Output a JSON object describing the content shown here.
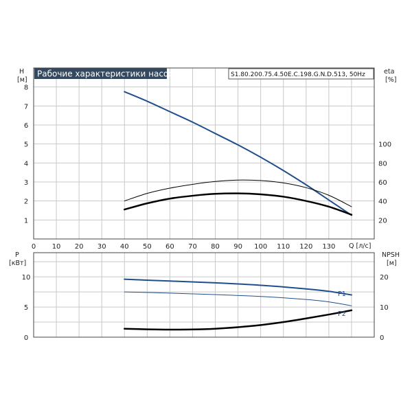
{
  "header": {
    "title": "Рабочие характеристики насоса",
    "model": "S1.80.200.75.4.50E.C.198.G.N.D.513, 50Hz"
  },
  "chart_data": [
    {
      "type": "line",
      "x_unit": "Q [л/с]",
      "x_ticks": [
        "0",
        "10",
        "20",
        "30",
        "40",
        "50",
        "60",
        "70",
        "80",
        "90",
        "100",
        "110",
        "120",
        "130"
      ],
      "xlim": [
        0,
        150
      ],
      "y_left_label": [
        "H",
        "[м]"
      ],
      "y_left_ticks": [
        "1",
        "2",
        "3",
        "4",
        "5",
        "6",
        "7",
        "8"
      ],
      "ylim_left": [
        0,
        9
      ],
      "y_right_label": [
        "eta",
        "[%]"
      ],
      "y_right_ticks": [
        "20",
        "40",
        "60",
        "80",
        "100"
      ],
      "ylim_right": [
        0,
        180
      ],
      "grid": true,
      "series": [
        {
          "axis": "left",
          "color": "#1f4e8c",
          "width": 2,
          "x": [
            40,
            50,
            60,
            70,
            80,
            90,
            100,
            110,
            120,
            130,
            140
          ],
          "y": [
            7.75,
            7.25,
            6.7,
            6.15,
            5.55,
            4.95,
            4.3,
            3.6,
            2.85,
            2.05,
            1.25
          ]
        },
        {
          "axis": "right",
          "color": "#000000",
          "width": 1,
          "x": [
            40,
            50,
            60,
            70,
            80,
            90,
            100,
            110,
            120,
            130,
            140
          ],
          "y": [
            40,
            48,
            53.5,
            57.5,
            60.5,
            62,
            61.5,
            59,
            54,
            46,
            34
          ]
        },
        {
          "axis": "right",
          "color": "#000000",
          "width": 2.5,
          "x": [
            40,
            50,
            60,
            70,
            80,
            90,
            100,
            110,
            120,
            130,
            140
          ],
          "y": [
            31,
            37.5,
            42.5,
            45.5,
            47.5,
            48,
            47,
            44.5,
            40,
            34,
            25.5
          ]
        }
      ]
    },
    {
      "type": "line",
      "y_left_label": [
        "P",
        "[кВт]"
      ],
      "y_left_ticks": [
        "0",
        "5",
        "10"
      ],
      "ylim_left": [
        0,
        14
      ],
      "y_right_label": [
        "NPSH",
        "[м]"
      ],
      "y_right_ticks": [
        "0",
        "10",
        "20"
      ],
      "ylim_right": [
        0,
        28
      ],
      "xlim": [
        0,
        150
      ],
      "grid": true,
      "series": [
        {
          "name": "P1",
          "axis": "left",
          "color": "#1f4e8c",
          "width": 2,
          "x": [
            40,
            60,
            80,
            100,
            120,
            130,
            140
          ],
          "y": [
            9.6,
            9.3,
            9.0,
            8.6,
            8.0,
            7.6,
            7.0
          ]
        },
        {
          "name": "P2",
          "axis": "left",
          "color": "#1f4e8c",
          "width": 1,
          "x": [
            40,
            60,
            80,
            100,
            120,
            130,
            140
          ],
          "y": [
            7.5,
            7.3,
            7.05,
            6.75,
            6.25,
            5.85,
            5.2
          ]
        },
        {
          "axis": "right",
          "color": "#000000",
          "width": 2.5,
          "x": [
            40,
            50,
            60,
            70,
            80,
            90,
            100,
            110,
            120,
            130,
            140
          ],
          "y": [
            2.8,
            2.6,
            2.5,
            2.55,
            2.8,
            3.3,
            4.0,
            5.0,
            6.2,
            7.5,
            8.9
          ]
        }
      ]
    }
  ]
}
